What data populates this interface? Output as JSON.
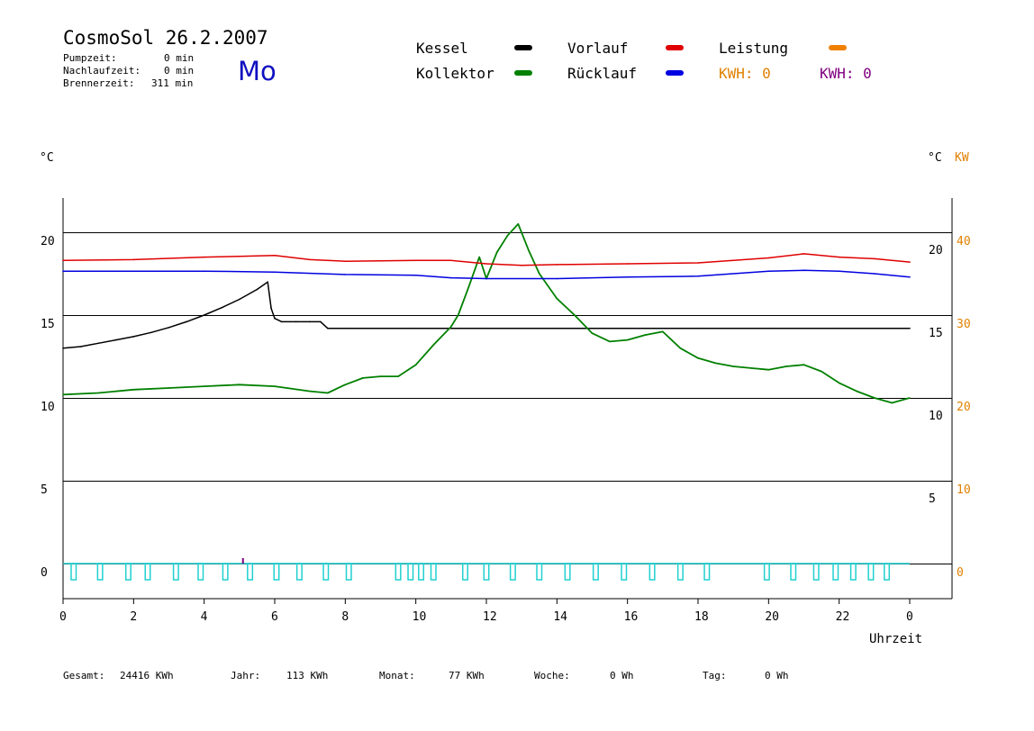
{
  "header": {
    "title": "CosmoSol 26.2.2007",
    "day": "Mo",
    "stats": [
      {
        "label": "Pumpzeit:",
        "value": "0 min"
      },
      {
        "label": "Nachlaufzeit:",
        "value": "0 min"
      },
      {
        "label": "Brennerzeit:",
        "value": "311 min"
      }
    ]
  },
  "legend": {
    "items": [
      {
        "label": "Kessel",
        "color": "#000000"
      },
      {
        "label": "Kollektor",
        "color": "#008000"
      },
      {
        "label": "Vorlauf",
        "color": "#e00000"
      },
      {
        "label": "Rücklauf",
        "color": "#0000e0"
      },
      {
        "label": "Leistung",
        "color": "#f08000"
      }
    ],
    "kwh_orange": "KWH: 0",
    "kwh_purple": "KWH: 0"
  },
  "colors": {
    "kessel": "#000000",
    "kollektor": "#008000",
    "vorlauf": "#e00000",
    "ruecklauf": "#0000e0",
    "pumpe": "#20d0d0",
    "leistung": "#e08000",
    "kwh_purple": "#800080",
    "grid": "#000000"
  },
  "footer": [
    {
      "label": "Gesamt:",
      "value": "24416 KWh"
    },
    {
      "label": "Jahr:",
      "value": "113 KWh"
    },
    {
      "label": "Monat:",
      "value": "77 KWh"
    },
    {
      "label": "Woche:",
      "value": "0 Wh"
    },
    {
      "label": "Tag:",
      "value": "0 Wh"
    }
  ],
  "chart_data": {
    "type": "line",
    "xlabel": "Uhrzeit",
    "ylabel_left": "°C",
    "ylabel_right": "°C",
    "ylabel_right2": "KW",
    "x_ticks": [
      "0",
      "2",
      "4",
      "6",
      "8",
      "10",
      "12",
      "14",
      "16",
      "18",
      "20",
      "22",
      "0"
    ],
    "y_ticks_left": [
      "20",
      "15",
      "10",
      "5",
      "0"
    ],
    "y_ticks_right": [
      "20",
      "15",
      "10",
      "5"
    ],
    "y_ticks_right_kw": [
      "40",
      "30",
      "20",
      "10",
      "0"
    ],
    "xlim": [
      0,
      24
    ],
    "ylim": [
      -1.5,
      22.5
    ],
    "grid": true,
    "series": [
      {
        "name": "Kessel",
        "key": "kessel",
        "x": [
          0,
          0.5,
          1,
          1.5,
          2,
          2.5,
          3,
          3.5,
          4,
          4.5,
          5,
          5.5,
          5.8,
          5.9,
          6.0,
          6.2,
          6.6,
          7.0,
          7.3,
          7.5,
          8,
          10,
          12,
          14,
          16,
          18,
          20,
          22,
          24
        ],
        "y": [
          13.0,
          13.1,
          13.3,
          13.5,
          13.7,
          13.95,
          14.25,
          14.6,
          15.0,
          15.45,
          15.95,
          16.55,
          17.0,
          15.4,
          14.8,
          14.6,
          14.6,
          14.6,
          14.6,
          14.2,
          14.2,
          14.2,
          14.2,
          14.2,
          14.2,
          14.2,
          14.2,
          14.2,
          14.2
        ]
      },
      {
        "name": "Kollektor",
        "key": "kollektor",
        "x": [
          0,
          1,
          2,
          3,
          4,
          5,
          6,
          7,
          7.5,
          8,
          8.5,
          9,
          9.5,
          10,
          10.5,
          11,
          11.2,
          11.5,
          11.8,
          12.0,
          12.3,
          12.6,
          12.9,
          13.2,
          13.5,
          14,
          14.5,
          15,
          15.5,
          16,
          16.5,
          17,
          17.5,
          18,
          18.5,
          19,
          19.5,
          20,
          20.5,
          21,
          21.5,
          22,
          22.5,
          23,
          23.5,
          24
        ],
        "y": [
          10.2,
          10.3,
          10.5,
          10.6,
          10.7,
          10.8,
          10.7,
          10.4,
          10.3,
          10.8,
          11.2,
          11.3,
          11.3,
          12.0,
          13.2,
          14.3,
          15.0,
          16.7,
          18.5,
          17.2,
          18.8,
          19.8,
          20.5,
          18.9,
          17.5,
          16.0,
          15.0,
          13.9,
          13.4,
          13.5,
          13.8,
          14.0,
          13.0,
          12.4,
          12.1,
          11.9,
          11.8,
          11.7,
          11.9,
          12.0,
          11.6,
          10.9,
          10.4,
          10.0,
          9.7,
          10.0
        ]
      },
      {
        "name": "Vorlauf",
        "key": "vorlauf",
        "x": [
          0,
          2,
          4,
          5,
          6,
          7,
          8,
          10,
          11,
          12,
          13,
          14,
          16,
          18,
          20,
          21,
          22,
          23,
          24
        ],
        "y": [
          18.3,
          18.35,
          18.5,
          18.55,
          18.6,
          18.35,
          18.25,
          18.3,
          18.3,
          18.1,
          18.0,
          18.05,
          18.1,
          18.15,
          18.45,
          18.7,
          18.5,
          18.4,
          18.2
        ]
      },
      {
        "name": "Rücklauf",
        "key": "ruecklauf",
        "x": [
          0,
          4,
          6,
          8,
          10,
          11,
          12,
          14,
          16,
          18,
          20,
          21,
          22,
          23,
          24
        ],
        "y": [
          17.65,
          17.65,
          17.6,
          17.45,
          17.4,
          17.25,
          17.2,
          17.2,
          17.3,
          17.35,
          17.65,
          17.7,
          17.65,
          17.5,
          17.3
        ]
      }
    ],
    "pump_pulses_h": [
      0.3,
      1.05,
      1.85,
      2.4,
      3.2,
      3.9,
      4.6,
      5.3,
      6.05,
      6.7,
      7.45,
      8.1,
      9.5,
      9.85,
      10.15,
      10.5,
      11.4,
      12.0,
      12.75,
      13.5,
      14.3,
      15.1,
      15.9,
      16.7,
      17.5,
      18.25,
      19.95,
      20.7,
      21.35,
      21.9,
      22.4,
      22.9,
      23.35
    ]
  }
}
